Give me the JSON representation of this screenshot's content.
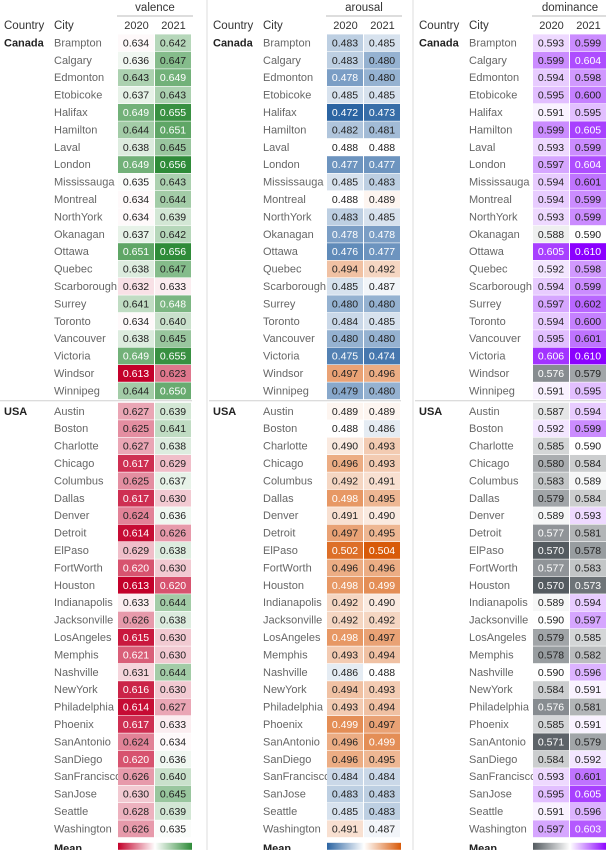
{
  "chart_data": {
    "type": "heatmap",
    "row_headers": {
      "country": "Country",
      "city": "City"
    },
    "metrics": [
      "valence",
      "arousal",
      "dominance"
    ],
    "years": [
      "2020",
      "2021"
    ],
    "legend_label": "Mean",
    "colors": {
      "valence": [
        "#c3002a",
        "#ffffff",
        "#2e8b38"
      ],
      "arousal": [
        "#2b64a2",
        "#ffffff",
        "#d85a09"
      ],
      "dominance": [
        "#545b60",
        "#ffffff",
        "#8b00ff"
      ]
    },
    "groups": [
      {
        "country": "Canada",
        "rows": [
          {
            "city": "Brampton",
            "valence": [
              0.634,
              0.642
            ],
            "arousal": [
              0.483,
              0.485
            ],
            "dominance": [
              0.593,
              0.599
            ]
          },
          {
            "city": "Calgary",
            "valence": [
              0.636,
              0.647
            ],
            "arousal": [
              0.483,
              0.48
            ],
            "dominance": [
              0.599,
              0.604
            ]
          },
          {
            "city": "Edmonton",
            "valence": [
              0.643,
              0.649
            ],
            "arousal": [
              0.478,
              0.48
            ],
            "dominance": [
              0.594,
              0.598
            ]
          },
          {
            "city": "Etobicoke",
            "valence": [
              0.637,
              0.643
            ],
            "arousal": [
              0.485,
              0.485
            ],
            "dominance": [
              0.595,
              0.6
            ]
          },
          {
            "city": "Halifax",
            "valence": [
              0.649,
              0.655
            ],
            "arousal": [
              0.472,
              0.473
            ],
            "dominance": [
              0.591,
              0.595
            ]
          },
          {
            "city": "Hamilton",
            "valence": [
              0.644,
              0.651
            ],
            "arousal": [
              0.482,
              0.481
            ],
            "dominance": [
              0.599,
              0.605
            ]
          },
          {
            "city": "Laval",
            "valence": [
              0.638,
              0.645
            ],
            "arousal": [
              0.488,
              0.488
            ],
            "dominance": [
              0.593,
              0.599
            ]
          },
          {
            "city": "London",
            "valence": [
              0.649,
              0.656
            ],
            "arousal": [
              0.477,
              0.477
            ],
            "dominance": [
              0.597,
              0.604
            ]
          },
          {
            "city": "Mississauga",
            "valence": [
              0.635,
              0.643
            ],
            "arousal": [
              0.485,
              0.483
            ],
            "dominance": [
              0.594,
              0.601
            ]
          },
          {
            "city": "Montreal",
            "valence": [
              0.634,
              0.644
            ],
            "arousal": [
              0.488,
              0.489
            ],
            "dominance": [
              0.594,
              0.599
            ]
          },
          {
            "city": "NorthYork",
            "valence": [
              0.634,
              0.639
            ],
            "arousal": [
              0.483,
              0.485
            ],
            "dominance": [
              0.593,
              0.599
            ]
          },
          {
            "city": "Okanagan",
            "valence": [
              0.637,
              0.642
            ],
            "arousal": [
              0.478,
              0.478
            ],
            "dominance": [
              0.588,
              0.59
            ]
          },
          {
            "city": "Ottawa",
            "valence": [
              0.651,
              0.656
            ],
            "arousal": [
              0.476,
              0.477
            ],
            "dominance": [
              0.605,
              0.61
            ]
          },
          {
            "city": "Quebec",
            "valence": [
              0.638,
              0.647
            ],
            "arousal": [
              0.494,
              0.492
            ],
            "dominance": [
              0.592,
              0.598
            ]
          },
          {
            "city": "Scarborough",
            "valence": [
              0.632,
              0.633
            ],
            "arousal": [
              0.485,
              0.487
            ],
            "dominance": [
              0.594,
              0.599
            ]
          },
          {
            "city": "Surrey",
            "valence": [
              0.641,
              0.648
            ],
            "arousal": [
              0.48,
              0.48
            ],
            "dominance": [
              0.597,
              0.602
            ]
          },
          {
            "city": "Toronto",
            "valence": [
              0.634,
              0.64
            ],
            "arousal": [
              0.484,
              0.485
            ],
            "dominance": [
              0.594,
              0.6
            ]
          },
          {
            "city": "Vancouver",
            "valence": [
              0.638,
              0.645
            ],
            "arousal": [
              0.48,
              0.48
            ],
            "dominance": [
              0.595,
              0.601
            ]
          },
          {
            "city": "Victoria",
            "valence": [
              0.649,
              0.655
            ],
            "arousal": [
              0.475,
              0.474
            ],
            "dominance": [
              0.606,
              0.61
            ]
          },
          {
            "city": "Windsor",
            "valence": [
              0.613,
              0.623
            ],
            "arousal": [
              0.497,
              0.496
            ],
            "dominance": [
              0.576,
              0.579
            ]
          },
          {
            "city": "Winnipeg",
            "valence": [
              0.644,
              0.65
            ],
            "arousal": [
              0.479,
              0.48
            ],
            "dominance": [
              0.591,
              0.595
            ]
          }
        ]
      },
      {
        "country": "USA",
        "rows": [
          {
            "city": "Austin",
            "valence": [
              0.627,
              0.639
            ],
            "arousal": [
              0.489,
              0.489
            ],
            "dominance": [
              0.587,
              0.594
            ]
          },
          {
            "city": "Boston",
            "valence": [
              0.625,
              0.641
            ],
            "arousal": [
              0.488,
              0.486
            ],
            "dominance": [
              0.592,
              0.599
            ]
          },
          {
            "city": "Charlotte",
            "valence": [
              0.627,
              0.638
            ],
            "arousal": [
              0.49,
              0.493
            ],
            "dominance": [
              0.585,
              0.59
            ]
          },
          {
            "city": "Chicago",
            "valence": [
              0.617,
              0.629
            ],
            "arousal": [
              0.496,
              0.493
            ],
            "dominance": [
              0.58,
              0.584
            ]
          },
          {
            "city": "Columbus",
            "valence": [
              0.625,
              0.637
            ],
            "arousal": [
              0.492,
              0.491
            ],
            "dominance": [
              0.583,
              0.589
            ]
          },
          {
            "city": "Dallas",
            "valence": [
              0.617,
              0.63
            ],
            "arousal": [
              0.498,
              0.495
            ],
            "dominance": [
              0.579,
              0.584
            ]
          },
          {
            "city": "Denver",
            "valence": [
              0.624,
              0.636
            ],
            "arousal": [
              0.491,
              0.49
            ],
            "dominance": [
              0.589,
              0.593
            ]
          },
          {
            "city": "Detroit",
            "valence": [
              0.614,
              0.626
            ],
            "arousal": [
              0.497,
              0.495
            ],
            "dominance": [
              0.577,
              0.581
            ]
          },
          {
            "city": "ElPaso",
            "valence": [
              0.629,
              0.638
            ],
            "arousal": [
              0.502,
              0.504
            ],
            "dominance": [
              0.57,
              0.578
            ]
          },
          {
            "city": "FortWorth",
            "valence": [
              0.62,
              0.63
            ],
            "arousal": [
              0.496,
              0.496
            ],
            "dominance": [
              0.577,
              0.583
            ]
          },
          {
            "city": "Houston",
            "valence": [
              0.613,
              0.62
            ],
            "arousal": [
              0.498,
              0.499
            ],
            "dominance": [
              0.57,
              0.573
            ]
          },
          {
            "city": "Indianapolis",
            "valence": [
              0.633,
              0.644
            ],
            "arousal": [
              0.492,
              0.49
            ],
            "dominance": [
              0.589,
              0.594
            ]
          },
          {
            "city": "Jacksonville",
            "valence": [
              0.626,
              0.638
            ],
            "arousal": [
              0.492,
              0.492
            ],
            "dominance": [
              0.59,
              0.597
            ]
          },
          {
            "city": "LosAngeles",
            "valence": [
              0.615,
              0.63
            ],
            "arousal": [
              0.498,
              0.497
            ],
            "dominance": [
              0.579,
              0.585
            ]
          },
          {
            "city": "Memphis",
            "valence": [
              0.621,
              0.63
            ],
            "arousal": [
              0.493,
              0.494
            ],
            "dominance": [
              0.578,
              0.582
            ]
          },
          {
            "city": "Nashville",
            "valence": [
              0.631,
              0.644
            ],
            "arousal": [
              0.486,
              0.488
            ],
            "dominance": [
              0.59,
              0.596
            ]
          },
          {
            "city": "NewYork",
            "valence": [
              0.616,
              0.63
            ],
            "arousal": [
              0.494,
              0.493
            ],
            "dominance": [
              0.584,
              0.591
            ]
          },
          {
            "city": "Philadelphia",
            "valence": [
              0.614,
              0.627
            ],
            "arousal": [
              0.493,
              0.494
            ],
            "dominance": [
              0.576,
              0.581
            ]
          },
          {
            "city": "Phoenix",
            "valence": [
              0.617,
              0.633
            ],
            "arousal": [
              0.499,
              0.497
            ],
            "dominance": [
              0.585,
              0.591
            ]
          },
          {
            "city": "SanAntonio",
            "valence": [
              0.624,
              0.634
            ],
            "arousal": [
              0.496,
              0.499
            ],
            "dominance": [
              0.571,
              0.579
            ]
          },
          {
            "city": "SanDiego",
            "valence": [
              0.62,
              0.636
            ],
            "arousal": [
              0.496,
              0.495
            ],
            "dominance": [
              0.584,
              0.592
            ]
          },
          {
            "city": "SanFrancisco",
            "valence": [
              0.626,
              0.64
            ],
            "arousal": [
              0.484,
              0.484
            ],
            "dominance": [
              0.593,
              0.601
            ]
          },
          {
            "city": "SanJose",
            "valence": [
              0.63,
              0.645
            ],
            "arousal": [
              0.483,
              0.483
            ],
            "dominance": [
              0.595,
              0.605
            ]
          },
          {
            "city": "Seattle",
            "valence": [
              0.628,
              0.639
            ],
            "arousal": [
              0.485,
              0.483
            ],
            "dominance": [
              0.591,
              0.596
            ]
          },
          {
            "city": "Washington",
            "valence": [
              0.626,
              0.635
            ],
            "arousal": [
              0.491,
              0.487
            ],
            "dominance": [
              0.597,
              0.603
            ]
          }
        ]
      }
    ]
  }
}
